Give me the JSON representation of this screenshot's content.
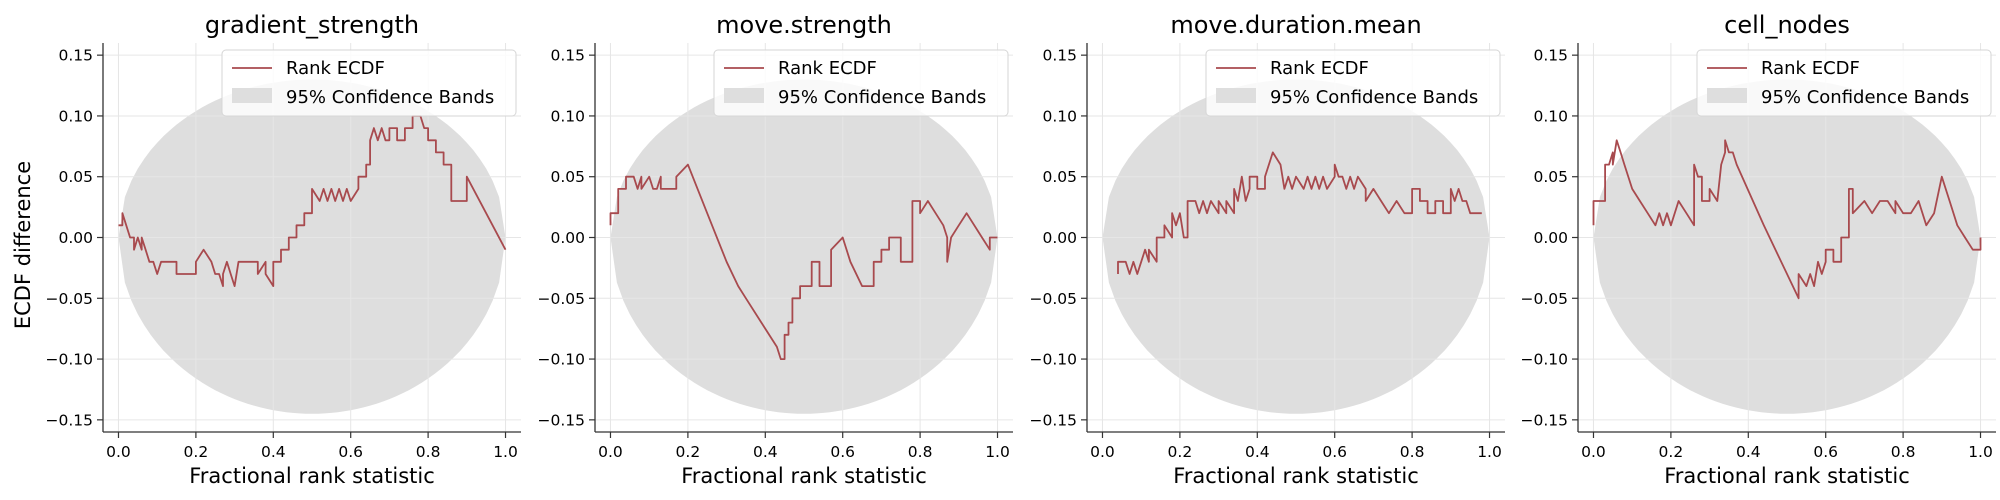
{
  "figure": {
    "ylabel": "ECDF difference",
    "legend": {
      "line_label": "Rank ECDF",
      "band_label": "95% Confidence Bands",
      "placement": "upper-right"
    },
    "colors": {
      "line": "#A84A4E",
      "band": "#DEDEDE",
      "grid": "#E6E6E6",
      "axis": "#333333"
    }
  },
  "chart_data": [
    {
      "type": "line",
      "title": "gradient_strength",
      "xlabel": "Fractional rank statistic",
      "ylabel": "ECDF difference",
      "xlim": [
        -0.04,
        1.04
      ],
      "ylim": [
        -0.16,
        0.16
      ],
      "xticks": [
        "0.0",
        "0.2",
        "0.4",
        "0.6",
        "0.8",
        "1.0"
      ],
      "yticks": [
        "0.15",
        "0.10",
        "0.05",
        "0.00",
        "−0.05",
        "−0.10",
        "−0.15"
      ],
      "grid": true,
      "series": [
        {
          "name": "Rank ECDF",
          "x": [
            0.0,
            0.01,
            0.01,
            0.03,
            0.04,
            0.04,
            0.05,
            0.06,
            0.06,
            0.07,
            0.08,
            0.09,
            0.1,
            0.11,
            0.12,
            0.12,
            0.15,
            0.15,
            0.2,
            0.2,
            0.22,
            0.24,
            0.25,
            0.26,
            0.27,
            0.27,
            0.28,
            0.29,
            0.3,
            0.31,
            0.31,
            0.36,
            0.36,
            0.38,
            0.38,
            0.4,
            0.4,
            0.42,
            0.42,
            0.44,
            0.44,
            0.46,
            0.46,
            0.48,
            0.48,
            0.5,
            0.5,
            0.52,
            0.53,
            0.54,
            0.55,
            0.56,
            0.57,
            0.58,
            0.59,
            0.6,
            0.62,
            0.62,
            0.64,
            0.64,
            0.65,
            0.65,
            0.66,
            0.67,
            0.68,
            0.69,
            0.7,
            0.7,
            0.72,
            0.72,
            0.74,
            0.74,
            0.76,
            0.76,
            0.78,
            0.79,
            0.8,
            0.8,
            0.82,
            0.82,
            0.84,
            0.84,
            0.86,
            0.86,
            0.9,
            0.9,
            1.0
          ],
          "y": [
            0.01,
            0.01,
            0.02,
            0.0,
            0.0,
            -0.01,
            0.0,
            -0.01,
            0.0,
            -0.01,
            -0.02,
            -0.02,
            -0.03,
            -0.02,
            -0.02,
            -0.02,
            -0.02,
            -0.03,
            -0.03,
            -0.02,
            -0.01,
            -0.02,
            -0.03,
            -0.03,
            -0.04,
            -0.03,
            -0.02,
            -0.03,
            -0.04,
            -0.02,
            -0.02,
            -0.02,
            -0.03,
            -0.02,
            -0.03,
            -0.04,
            -0.02,
            -0.02,
            -0.01,
            -0.01,
            0.0,
            0.0,
            0.01,
            0.01,
            0.02,
            0.02,
            0.04,
            0.03,
            0.04,
            0.03,
            0.04,
            0.03,
            0.04,
            0.03,
            0.04,
            0.03,
            0.04,
            0.05,
            0.05,
            0.06,
            0.06,
            0.08,
            0.09,
            0.08,
            0.09,
            0.08,
            0.08,
            0.09,
            0.09,
            0.08,
            0.08,
            0.09,
            0.09,
            0.1,
            0.1,
            0.09,
            0.09,
            0.08,
            0.08,
            0.07,
            0.07,
            0.06,
            0.06,
            0.03,
            0.03,
            0.05,
            -0.01
          ]
        }
      ],
      "band": {
        "name": "95% Confidence Bands",
        "upper_max": 0.13,
        "lower_min": -0.145
      }
    },
    {
      "type": "line",
      "title": "move.strength",
      "xlabel": "Fractional rank statistic",
      "ylabel": "",
      "xlim": [
        -0.04,
        1.04
      ],
      "ylim": [
        -0.16,
        0.16
      ],
      "xticks": [
        "0.0",
        "0.2",
        "0.4",
        "0.6",
        "0.8",
        "1.0"
      ],
      "yticks": [
        "0.15",
        "0.10",
        "0.05",
        "0.00",
        "−0.05",
        "−0.10",
        "−0.15"
      ],
      "grid": true,
      "series": [
        {
          "name": "Rank ECDF",
          "x": [
            0.0,
            0.0,
            0.02,
            0.02,
            0.04,
            0.04,
            0.06,
            0.07,
            0.08,
            0.08,
            0.1,
            0.11,
            0.12,
            0.13,
            0.13,
            0.17,
            0.17,
            0.2,
            0.2,
            0.25,
            0.3,
            0.33,
            0.35,
            0.39,
            0.43,
            0.44,
            0.45,
            0.45,
            0.46,
            0.46,
            0.47,
            0.47,
            0.49,
            0.49,
            0.52,
            0.52,
            0.54,
            0.54,
            0.57,
            0.57,
            0.6,
            0.62,
            0.65,
            0.68,
            0.68,
            0.7,
            0.7,
            0.72,
            0.72,
            0.75,
            0.75,
            0.78,
            0.78,
            0.8,
            0.8,
            0.82,
            0.84,
            0.86,
            0.86,
            0.87,
            0.87,
            0.88,
            0.9,
            0.92,
            0.96,
            0.98,
            0.98,
            1.0
          ],
          "y": [
            0.01,
            0.02,
            0.02,
            0.04,
            0.04,
            0.05,
            0.05,
            0.04,
            0.05,
            0.04,
            0.05,
            0.04,
            0.04,
            0.05,
            0.04,
            0.04,
            0.05,
            0.06,
            0.06,
            0.02,
            -0.02,
            -0.04,
            -0.05,
            -0.07,
            -0.09,
            -0.1,
            -0.1,
            -0.08,
            -0.08,
            -0.07,
            -0.07,
            -0.05,
            -0.05,
            -0.04,
            -0.04,
            -0.02,
            -0.02,
            -0.04,
            -0.04,
            -0.01,
            0.0,
            -0.02,
            -0.04,
            -0.04,
            -0.02,
            -0.02,
            -0.01,
            -0.01,
            0.0,
            0.0,
            -0.02,
            -0.02,
            0.03,
            0.03,
            0.02,
            0.03,
            0.02,
            0.01,
            0.01,
            0.0,
            -0.02,
            0.0,
            0.01,
            0.02,
            0.0,
            -0.01,
            0.0,
            0.0
          ]
        }
      ],
      "band": {
        "name": "95% Confidence Bands",
        "upper_max": 0.13,
        "lower_min": -0.145
      }
    },
    {
      "type": "line",
      "title": "move.duration.mean",
      "xlabel": "Fractional rank statistic",
      "ylabel": "",
      "xlim": [
        -0.04,
        1.04
      ],
      "ylim": [
        -0.16,
        0.16
      ],
      "xticks": [
        "0.0",
        "0.2",
        "0.4",
        "0.6",
        "0.8",
        "1.0"
      ],
      "yticks": [
        "0.15",
        "0.10",
        "0.05",
        "0.00",
        "−0.05",
        "−0.10",
        "−0.15"
      ],
      "grid": true,
      "series": [
        {
          "name": "Rank ECDF",
          "x": [
            0.04,
            0.04,
            0.06,
            0.07,
            0.08,
            0.09,
            0.1,
            0.11,
            0.12,
            0.12,
            0.14,
            0.14,
            0.16,
            0.16,
            0.18,
            0.18,
            0.19,
            0.2,
            0.21,
            0.22,
            0.22,
            0.24,
            0.25,
            0.26,
            0.27,
            0.28,
            0.3,
            0.3,
            0.32,
            0.32,
            0.34,
            0.34,
            0.35,
            0.36,
            0.37,
            0.38,
            0.38,
            0.4,
            0.4,
            0.42,
            0.42,
            0.44,
            0.46,
            0.47,
            0.48,
            0.49,
            0.5,
            0.52,
            0.53,
            0.54,
            0.55,
            0.56,
            0.57,
            0.58,
            0.6,
            0.6,
            0.61,
            0.62,
            0.63,
            0.64,
            0.65,
            0.66,
            0.68,
            0.68,
            0.7,
            0.72,
            0.74,
            0.76,
            0.78,
            0.8,
            0.8,
            0.82,
            0.82,
            0.84,
            0.84,
            0.86,
            0.86,
            0.88,
            0.88,
            0.9,
            0.9,
            0.91,
            0.92,
            0.93,
            0.94,
            0.95,
            0.96,
            0.98
          ],
          "y": [
            -0.03,
            -0.02,
            -0.02,
            -0.03,
            -0.02,
            -0.03,
            -0.02,
            -0.01,
            -0.02,
            -0.01,
            -0.02,
            0.0,
            0.0,
            0.01,
            0.0,
            0.02,
            0.01,
            0.02,
            0.0,
            0.0,
            0.03,
            0.03,
            0.02,
            0.03,
            0.02,
            0.03,
            0.02,
            0.03,
            0.02,
            0.03,
            0.02,
            0.04,
            0.03,
            0.05,
            0.03,
            0.04,
            0.05,
            0.05,
            0.04,
            0.04,
            0.05,
            0.07,
            0.06,
            0.04,
            0.05,
            0.04,
            0.05,
            0.04,
            0.05,
            0.04,
            0.05,
            0.04,
            0.05,
            0.04,
            0.05,
            0.06,
            0.05,
            0.05,
            0.04,
            0.05,
            0.04,
            0.05,
            0.04,
            0.03,
            0.04,
            0.03,
            0.02,
            0.03,
            0.02,
            0.02,
            0.04,
            0.04,
            0.03,
            0.03,
            0.02,
            0.02,
            0.03,
            0.03,
            0.02,
            0.02,
            0.04,
            0.03,
            0.04,
            0.03,
            0.03,
            0.02,
            0.02,
            0.02
          ]
        }
      ],
      "band": {
        "name": "95% Confidence Bands",
        "upper_max": 0.13,
        "lower_min": -0.145
      }
    },
    {
      "type": "line",
      "title": "cell_nodes",
      "xlabel": "Fractional rank statistic",
      "ylabel": "",
      "xlim": [
        -0.04,
        1.04
      ],
      "ylim": [
        -0.16,
        0.16
      ],
      "xticks": [
        "0.0",
        "0.2",
        "0.4",
        "0.6",
        "0.8",
        "1.0"
      ],
      "yticks": [
        "0.15",
        "0.10",
        "0.05",
        "0.00",
        "−0.05",
        "−0.10",
        "−0.15"
      ],
      "grid": true,
      "series": [
        {
          "name": "Rank ECDF",
          "x": [
            0.0,
            0.0,
            0.03,
            0.03,
            0.04,
            0.05,
            0.05,
            0.06,
            0.07,
            0.08,
            0.1,
            0.12,
            0.14,
            0.16,
            0.17,
            0.18,
            0.19,
            0.2,
            0.22,
            0.24,
            0.26,
            0.26,
            0.27,
            0.28,
            0.28,
            0.3,
            0.3,
            0.32,
            0.33,
            0.34,
            0.34,
            0.35,
            0.36,
            0.37,
            0.44,
            0.53,
            0.53,
            0.55,
            0.56,
            0.57,
            0.58,
            0.59,
            0.6,
            0.6,
            0.62,
            0.62,
            0.64,
            0.64,
            0.66,
            0.66,
            0.67,
            0.67,
            0.7,
            0.72,
            0.74,
            0.76,
            0.78,
            0.78,
            0.8,
            0.82,
            0.84,
            0.86,
            0.88,
            0.9,
            0.92,
            0.94,
            0.96,
            0.98,
            1.0,
            1.0
          ],
          "y": [
            0.01,
            0.03,
            0.03,
            0.06,
            0.06,
            0.07,
            0.06,
            0.08,
            0.07,
            0.06,
            0.04,
            0.03,
            0.02,
            0.01,
            0.02,
            0.01,
            0.02,
            0.01,
            0.03,
            0.02,
            0.01,
            0.06,
            0.05,
            0.05,
            0.03,
            0.03,
            0.04,
            0.03,
            0.06,
            0.07,
            0.08,
            0.07,
            0.07,
            0.06,
            0.01,
            -0.05,
            -0.03,
            -0.04,
            -0.03,
            -0.04,
            -0.02,
            -0.03,
            -0.02,
            -0.01,
            -0.01,
            -0.02,
            -0.02,
            0.0,
            0.0,
            0.04,
            0.04,
            0.02,
            0.03,
            0.02,
            0.03,
            0.03,
            0.02,
            0.03,
            0.02,
            0.02,
            0.03,
            0.01,
            0.02,
            0.05,
            0.03,
            0.01,
            0.0,
            -0.01,
            -0.01,
            0.0
          ]
        }
      ],
      "band": {
        "name": "95% Confidence Bands",
        "upper_max": 0.13,
        "lower_min": -0.145
      }
    }
  ]
}
